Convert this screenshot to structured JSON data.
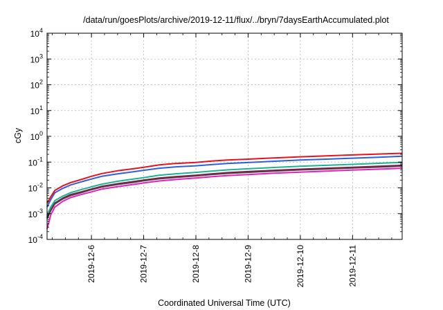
{
  "chart_data": {
    "type": "line",
    "title": "/data/run/goesPlots/archive/2019-12-11/flux/../bryn/7daysEarthAccumulated.plot",
    "xlabel": "Coordinated Universal Time (UTC)",
    "ylabel": "cGy",
    "yscale": "log",
    "ylim": [
      0.0001,
      10000
    ],
    "xlim": [
      5.15,
      11.95
    ],
    "grid": true,
    "y_ticks": [
      {
        "base": "10",
        "exp": "-4",
        "value": 0.0001
      },
      {
        "base": "10",
        "exp": "-3",
        "value": 0.001
      },
      {
        "base": "10",
        "exp": "-2",
        "value": 0.01
      },
      {
        "base": "10",
        "exp": "-1",
        "value": 0.1
      },
      {
        "base": "10",
        "exp": "0",
        "value": 1
      },
      {
        "base": "10",
        "exp": "1",
        "value": 10
      },
      {
        "base": "10",
        "exp": "2",
        "value": 100
      },
      {
        "base": "10",
        "exp": "3",
        "value": 1000
      },
      {
        "base": "10",
        "exp": "4",
        "value": 10000
      }
    ],
    "x_ticks": [
      {
        "label": "2019-12-6",
        "value": 6
      },
      {
        "label": "2019-12-7",
        "value": 7
      },
      {
        "label": "2019-12-8",
        "value": 8
      },
      {
        "label": "2019-12-9",
        "value": 9
      },
      {
        "label": "2019-12-10",
        "value": 10
      },
      {
        "label": "2019-12-11",
        "value": 11
      }
    ],
    "x": [
      5.15,
      5.22,
      5.3,
      5.45,
      5.6,
      5.8,
      6.0,
      6.2,
      6.5,
      6.8,
      7.0,
      7.3,
      7.6,
      8.0,
      8.3,
      8.6,
      9.0,
      9.5,
      10.0,
      10.5,
      11.0,
      11.5,
      11.95
    ],
    "series": [
      {
        "color": "#e8101e",
        "values": [
          0.0025,
          0.0045,
          0.008,
          0.012,
          0.016,
          0.021,
          0.028,
          0.036,
          0.046,
          0.055,
          0.063,
          0.078,
          0.088,
          0.097,
          0.11,
          0.12,
          0.13,
          0.145,
          0.16,
          0.175,
          0.19,
          0.205,
          0.22
        ]
      },
      {
        "color": "#2b5fe0",
        "values": [
          0.0018,
          0.0035,
          0.0065,
          0.0095,
          0.013,
          0.017,
          0.022,
          0.028,
          0.035,
          0.042,
          0.048,
          0.058,
          0.065,
          0.072,
          0.08,
          0.088,
          0.096,
          0.108,
          0.12,
          0.13,
          0.142,
          0.155,
          0.17
        ]
      },
      {
        "color": "#19b391",
        "values": [
          0.0009,
          0.0018,
          0.0032,
          0.0048,
          0.0065,
          0.0085,
          0.011,
          0.014,
          0.018,
          0.022,
          0.025,
          0.031,
          0.035,
          0.04,
          0.045,
          0.05,
          0.055,
          0.062,
          0.069,
          0.075,
          0.082,
          0.09,
          0.098
        ]
      },
      {
        "color": "#7a1f4a",
        "values": [
          0.0007,
          0.0014,
          0.0026,
          0.004,
          0.0055,
          0.007,
          0.009,
          0.0115,
          0.0145,
          0.0175,
          0.02,
          0.024,
          0.027,
          0.031,
          0.035,
          0.039,
          0.043,
          0.048,
          0.053,
          0.058,
          0.063,
          0.069,
          0.075
        ]
      },
      {
        "color": "#4a4a4a",
        "values": [
          0.00065,
          0.0013,
          0.0024,
          0.0037,
          0.005,
          0.0065,
          0.0085,
          0.0108,
          0.0135,
          0.0163,
          0.0188,
          0.0225,
          0.0252,
          0.029,
          0.0328,
          0.0365,
          0.04,
          0.045,
          0.05,
          0.054,
          0.059,
          0.064,
          0.07
        ]
      },
      {
        "color": "#e41fb8",
        "values": [
          0.00025,
          0.0009,
          0.0018,
          0.003,
          0.0042,
          0.0055,
          0.007,
          0.009,
          0.0112,
          0.0135,
          0.0155,
          0.0185,
          0.021,
          0.024,
          0.027,
          0.03,
          0.033,
          0.037,
          0.041,
          0.045,
          0.049,
          0.053,
          0.058
        ]
      }
    ]
  }
}
